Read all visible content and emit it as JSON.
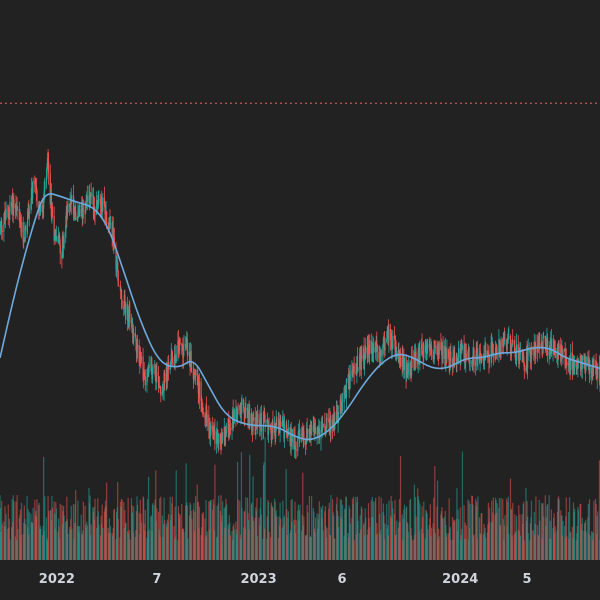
{
  "chart_data": {
    "type": "candlestick",
    "title": "",
    "xlabel": "",
    "ylabel": "",
    "x_tick_labels": [
      {
        "label": "2022",
        "date": "2022-01-01"
      },
      {
        "label": "7",
        "date": "2022-07-01"
      },
      {
        "label": "2023",
        "date": "2023-01-01"
      },
      {
        "label": "6",
        "date": "2023-06-01"
      },
      {
        "label": "2024",
        "date": "2024-01-01"
      },
      {
        "label": "5",
        "date": "2024-05-01"
      }
    ],
    "x_range": [
      "2021-09-20",
      "2024-09-10"
    ],
    "price_range": [
      0,
      100
    ],
    "reference_line": {
      "value": 84,
      "style": "dotted",
      "color": "#e06666"
    },
    "moving_average": {
      "color": "#6fa8dc",
      "points": [
        [
          "2021-09-20",
          35
        ],
        [
          "2021-10-20",
          49
        ],
        [
          "2021-11-20",
          61
        ],
        [
          "2021-12-10",
          67
        ],
        [
          "2022-01-10",
          66
        ],
        [
          "2022-02-05",
          65
        ],
        [
          "2022-03-10",
          64
        ],
        [
          "2022-04-05",
          60
        ],
        [
          "2022-05-01",
          52
        ],
        [
          "2022-06-01",
          42
        ],
        [
          "2022-07-05",
          34
        ],
        [
          "2022-08-10",
          33
        ],
        [
          "2022-09-05",
          35
        ],
        [
          "2022-10-01",
          30
        ],
        [
          "2022-11-01",
          24
        ],
        [
          "2022-12-10",
          22
        ],
        [
          "2023-02-01",
          22
        ],
        [
          "2023-03-05",
          20
        ],
        [
          "2023-04-05",
          19
        ],
        [
          "2023-05-10",
          21
        ],
        [
          "2023-06-10",
          25
        ],
        [
          "2023-07-10",
          30
        ],
        [
          "2023-08-10",
          34
        ],
        [
          "2023-09-10",
          36
        ],
        [
          "2023-10-10",
          35
        ],
        [
          "2023-11-10",
          33
        ],
        [
          "2023-12-10",
          33
        ],
        [
          "2024-01-10",
          35
        ],
        [
          "2024-02-10",
          35
        ],
        [
          "2024-03-10",
          36
        ],
        [
          "2024-04-10",
          36
        ],
        [
          "2024-05-10",
          37
        ],
        [
          "2024-06-10",
          37
        ],
        [
          "2024-07-10",
          35
        ],
        [
          "2024-08-10",
          34
        ],
        [
          "2024-09-10",
          33
        ]
      ]
    },
    "price_anchors": [
      [
        "2021-09-20",
        60
      ],
      [
        "2021-10-15",
        65
      ],
      [
        "2021-11-01",
        58
      ],
      [
        "2021-11-20",
        68
      ],
      [
        "2021-12-05",
        62
      ],
      [
        "2021-12-15",
        72
      ],
      [
        "2021-12-25",
        60
      ],
      [
        "2022-01-10",
        56
      ],
      [
        "2022-01-25",
        66
      ],
      [
        "2022-02-10",
        62
      ],
      [
        "2022-02-25",
        66
      ],
      [
        "2022-03-10",
        64
      ],
      [
        "2022-03-25",
        65
      ],
      [
        "2022-04-10",
        60
      ],
      [
        "2022-04-25",
        48
      ],
      [
        "2022-05-10",
        43
      ],
      [
        "2022-05-25",
        38
      ],
      [
        "2022-06-10",
        31
      ],
      [
        "2022-06-25",
        33
      ],
      [
        "2022-07-10",
        29
      ],
      [
        "2022-07-25",
        34
      ],
      [
        "2022-08-10",
        37
      ],
      [
        "2022-08-25",
        37
      ],
      [
        "2022-09-10",
        31
      ],
      [
        "2022-09-25",
        25
      ],
      [
        "2022-10-10",
        20
      ],
      [
        "2022-10-25",
        19
      ],
      [
        "2022-11-10",
        22
      ],
      [
        "2022-11-25",
        26
      ],
      [
        "2022-12-10",
        24
      ],
      [
        "2022-12-25",
        22
      ],
      [
        "2023-01-10",
        23
      ],
      [
        "2023-01-25",
        21
      ],
      [
        "2023-02-10",
        22
      ],
      [
        "2023-02-25",
        20
      ],
      [
        "2023-03-10",
        19
      ],
      [
        "2023-03-25",
        20
      ],
      [
        "2023-04-10",
        21
      ],
      [
        "2023-04-25",
        21
      ],
      [
        "2023-05-10",
        22
      ],
      [
        "2023-05-25",
        24
      ],
      [
        "2023-06-10",
        30
      ],
      [
        "2023-06-25",
        33
      ],
      [
        "2023-07-10",
        35
      ],
      [
        "2023-07-25",
        37
      ],
      [
        "2023-08-10",
        36
      ],
      [
        "2023-08-25",
        40
      ],
      [
        "2023-09-10",
        35
      ],
      [
        "2023-09-25",
        33
      ],
      [
        "2023-10-10",
        34
      ],
      [
        "2023-10-25",
        36
      ],
      [
        "2023-11-10",
        37
      ],
      [
        "2023-11-25",
        36
      ],
      [
        "2023-12-10",
        35
      ],
      [
        "2023-12-25",
        35
      ],
      [
        "2024-01-10",
        36
      ],
      [
        "2024-01-25",
        35
      ],
      [
        "2024-02-10",
        36
      ],
      [
        "2024-02-25",
        36
      ],
      [
        "2024-03-10",
        37
      ],
      [
        "2024-03-25",
        38
      ],
      [
        "2024-04-10",
        36
      ],
      [
        "2024-04-25",
        34
      ],
      [
        "2024-05-10",
        36
      ],
      [
        "2024-05-25",
        38
      ],
      [
        "2024-06-10",
        37
      ],
      [
        "2024-06-25",
        36
      ],
      [
        "2024-07-10",
        35
      ],
      [
        "2024-07-25",
        34
      ],
      [
        "2024-08-10",
        34
      ],
      [
        "2024-08-25",
        33
      ],
      [
        "2024-09-10",
        32
      ]
    ],
    "colors": {
      "up": "#26a69a",
      "down": "#ef5350",
      "background": "#222222",
      "axis_text": "#d1d4dc"
    },
    "grid": false
  }
}
